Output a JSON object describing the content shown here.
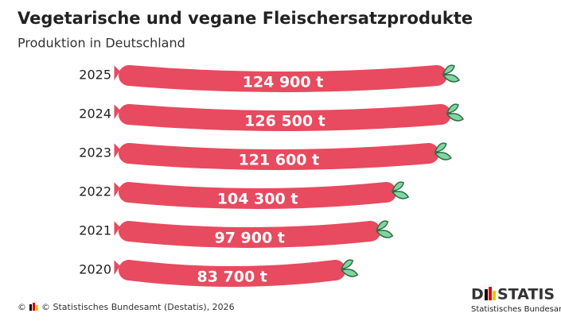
{
  "chart_data": {
    "type": "bar",
    "title": "Vegetarische und vegane Fleischersatzprodukte",
    "subtitle": "Produktion in Deutschland",
    "categories": [
      "2025",
      "2024",
      "2023",
      "2022",
      "2021",
      "2020"
    ],
    "values": [
      124900,
      126500,
      121600,
      104300,
      97900,
      83700
    ],
    "value_labels": [
      "124 900 t",
      "126 500 t",
      "121 600 t",
      "104 300 t",
      "97 900 t",
      "83 700 t"
    ],
    "color": "#e84a5f",
    "leaf_color": "#7fd6a0",
    "source": "© Statistisches Bundesamt (Destatis), 2026",
    "logo": {
      "left": "D",
      "right": "STATIS",
      "subtitle": "Statistisches Bundesamt"
    }
  }
}
